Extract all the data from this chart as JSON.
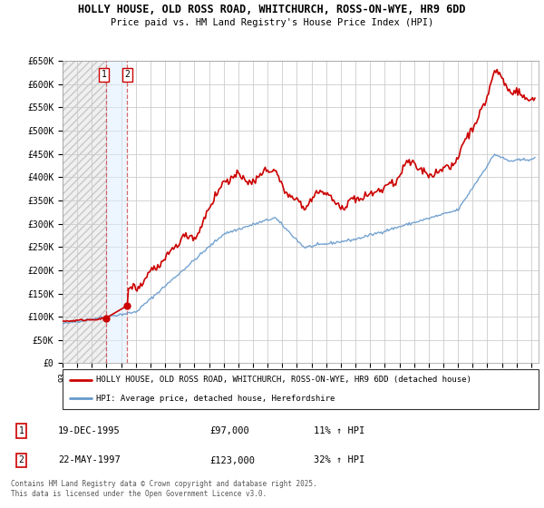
{
  "title1": "HOLLY HOUSE, OLD ROSS ROAD, WHITCHURCH, ROSS-ON-WYE, HR9 6DD",
  "title2": "Price paid vs. HM Land Registry's House Price Index (HPI)",
  "ylim": [
    0,
    650000
  ],
  "xlim_start": 1993.0,
  "xlim_end": 2025.5,
  "legend_line1": "HOLLY HOUSE, OLD ROSS ROAD, WHITCHURCH, ROSS-ON-WYE, HR9 6DD (detached house)",
  "legend_line2": "HPI: Average price, detached house, Herefordshire",
  "sale1_date": "19-DEC-1995",
  "sale1_price": "£97,000",
  "sale1_hpi": "11% ↑ HPI",
  "sale2_date": "22-MAY-1997",
  "sale2_price": "£123,000",
  "sale2_hpi": "32% ↑ HPI",
  "footnote": "Contains HM Land Registry data © Crown copyright and database right 2025.\nThis data is licensed under the Open Government Licence v3.0.",
  "line1_color": "#cc0000",
  "line2_color": "#6699cc",
  "sale1_year": 1995.96,
  "sale2_year": 1997.37,
  "sale1_price_val": 97000,
  "sale2_price_val": 123000
}
